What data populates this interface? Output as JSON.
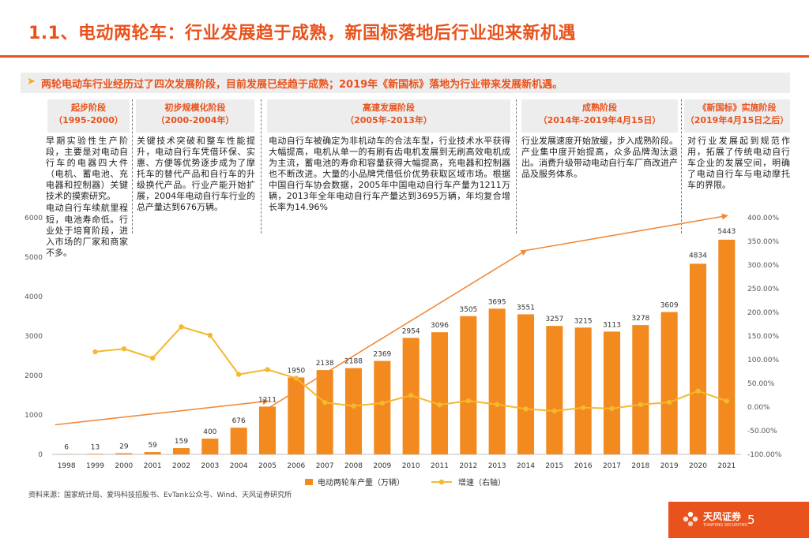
{
  "title": "1.1、电动两轮车：行业发展趋于成熟，新国标落地后行业迎来新机遇",
  "subtitle": "两轮电动车行业经历过了四次发展阶段，目前发展已经趋于成熟；2019年《新国标》落地为行业带来发展新机遇。",
  "subtitle_icon": "arrow-right-icon",
  "accent_color": "#E8531D",
  "bar_color": "#F28A1F",
  "line_color": "#F5B82E",
  "stages": [
    {
      "name": "起步阶段",
      "period": "（1995-2000）",
      "desc": [
        "早期实验性生产阶段，主要是对电动自行车的电器四大件（电机、蓄电池、充电器和控制器）关键技术的摸索研究。",
        "电动自行车续航里程短，电池寿命低。行业处于培育阶段，进入市场的厂家和商家不多。"
      ]
    },
    {
      "name": "初步规模化阶段",
      "period": "（2000-2004年）",
      "desc": [
        "关键技术突破和整车性能提升，电动自行车凭借环保、实惠、方便等优势逐步成为了摩托车的替代产品和自行车的升级换代产品。行业产能开始扩展，2004年电动自行车行业的总产量达到676万辆。"
      ]
    },
    {
      "name": "高速发展阶段",
      "period": "（2005年-2013年）",
      "desc": [
        "电动自行车被确定为非机动车的合法车型，行业技术水平获得大幅提高，电机从单一的有刷有齿电机发展到无刷高效电机成为主流，蓄电池的寿命和容量获得大幅提高，充电器和控制器也不断改进。大量的小品牌凭借低价优势获取区域市场。根据中国自行车协会数据，2005年中国电动自行车产量为1211万辆，2013年全年电动自行车产量达到3695万辆，年均复合增长率为14.96%"
      ]
    },
    {
      "name": "成熟阶段",
      "period": "（2014年-2019年4月15日）",
      "desc": [
        "行业发展速度开始放缓，步入成熟阶段。产业集中度开始提高，众多品牌淘汰退出。消费升级带动电动自行车厂商改进产品及服务体系。"
      ]
    },
    {
      "name": "《新国标》实施阶段",
      "period": "（2019年4月15日之后）",
      "desc": [
        "对行业发展起到规范作用，拓展了传统电动自行车企业的发展空间，明确了电动自行车与电动摩托车的界限。"
      ]
    }
  ],
  "chart_data": {
    "type": "bar+line",
    "categories": [
      "1998",
      "1999",
      "2000",
      "2001",
      "2002",
      "2003",
      "2004",
      "2005",
      "2006",
      "2007",
      "2008",
      "2009",
      "2010",
      "2011",
      "2012",
      "2013",
      "2014",
      "2015",
      "2016",
      "2017",
      "2018",
      "2019",
      "2020",
      "2021"
    ],
    "series": [
      {
        "name": "电动两轮车产量（万辆）",
        "type": "bar",
        "axis": "left",
        "values": [
          6,
          13,
          29,
          59,
          159,
          400,
          676,
          1211,
          1950,
          2138,
          2188,
          2369,
          2954,
          3096,
          3505,
          3695,
          3551,
          3257,
          3215,
          3113,
          3278,
          3609,
          4834,
          5443
        ],
        "labels": [
          "6",
          "13",
          "29",
          "59",
          "159",
          "400",
          "676",
          "1211",
          "1950",
          "2138",
          "2188",
          "2369",
          "2954",
          "3096",
          "3505",
          "3695",
          "3551",
          "3257",
          "3215",
          "3113",
          "3278",
          "3609",
          "4834",
          "5443"
        ]
      },
      {
        "name": "增速（右轴）",
        "type": "line",
        "axis": "right",
        "values": [
          null,
          116.7,
          123.1,
          103.4,
          169.5,
          151.6,
          69.0,
          79.1,
          61.0,
          9.6,
          2.3,
          8.3,
          24.7,
          4.8,
          13.2,
          5.4,
          -3.9,
          -8.3,
          -1.3,
          -3.2,
          5.3,
          10.1,
          33.9,
          12.6
        ]
      }
    ],
    "y_left": {
      "min": 0,
      "max": 6000,
      "ticks": [
        "0",
        "1000",
        "2000",
        "3000",
        "4000",
        "5000",
        "6000"
      ]
    },
    "y_right": {
      "min": -100,
      "max": 400,
      "ticks": [
        "-100.00%",
        "-50.00%",
        "0.00%",
        "50.00%",
        "100.00%",
        "150.00%",
        "200.00%",
        "250.00%",
        "300.00%",
        "350.00%",
        "400.00%"
      ]
    },
    "trend_arrow_points": [
      [
        1998,
        750
      ],
      [
        2005,
        1350
      ]
    ],
    "trend_arrow_points_2": [
      [
        2005,
        1160
      ],
      [
        2014,
        5170
      ],
      [
        2021,
        6050
      ]
    ],
    "legend": [
      "电动两轮车产量（万辆）",
      "增速（右轴）"
    ],
    "legend_position": "bottom"
  },
  "source": "资料来源：国家统计局、爱玛科技招股书、EvTank公众号、Wind、天风证券研究所",
  "footer": {
    "logo_text": "天风证券",
    "logo_sub": "TIANFENG SECURITIES",
    "page_number": "5"
  }
}
